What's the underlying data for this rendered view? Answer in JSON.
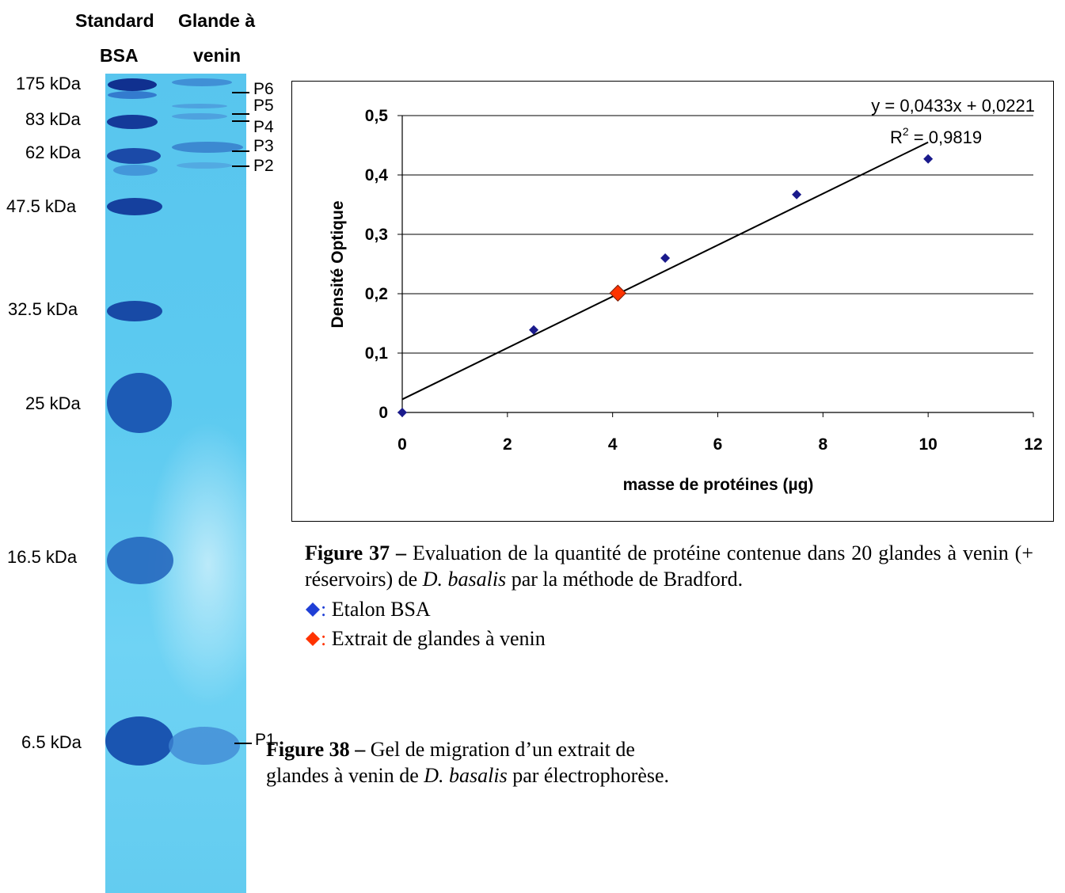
{
  "gel": {
    "header_col1_line1": "Standard",
    "header_col1_line2": "BSA",
    "header_col2_line1": "Glande à",
    "header_col2_line2": "venin",
    "mw_labels": [
      "175 kDa",
      "83 kDa",
      "62 kDa",
      "47.5 kDa",
      "32.5 kDa",
      "25 kDa",
      "16.5 kDa",
      "6.5 kDa"
    ],
    "band_labels": [
      "P6",
      "P5",
      "P4",
      "P3",
      "P2",
      "P1"
    ]
  },
  "chart_data": {
    "type": "scatter",
    "xlabel": "masse de protéines (µg)",
    "ylabel": "Densité Optique",
    "xlim": [
      0,
      12
    ],
    "ylim": [
      0,
      0.5
    ],
    "x_ticks": [
      "0",
      "2",
      "4",
      "6",
      "8",
      "10",
      "12"
    ],
    "y_ticks": [
      "0",
      "0,1",
      "0,2",
      "0,3",
      "0,4",
      "0,5"
    ],
    "grid": "horizontal",
    "series": [
      {
        "x": [
          0,
          2.5,
          5,
          7.5,
          10
        ],
        "y": [
          0,
          0.139,
          0.26,
          0.367,
          0.427
        ],
        "color": "#1a1a8c",
        "marker": "diamond"
      },
      {
        "x": [
          4.1
        ],
        "y": [
          0.201
        ],
        "color": "#ff3300",
        "marker": "diamond"
      }
    ],
    "trendline": {
      "slope": 0.0433,
      "intercept": 0.0221,
      "x_range": [
        0,
        10
      ]
    },
    "equation_text": "y = 0,0433x + 0,0221",
    "r2_prefix": "R",
    "r2_sup": "2",
    "r2_rest": " = 0,9819"
  },
  "fig37": {
    "label": "Figure 37",
    "dash": " – ",
    "text_a": "Evaluation de la quantité de protéine contenue dans 20 glandes à venin (+ réservoirs) de ",
    "species": "D. basalis",
    "text_b": " par la méthode de Bradford.",
    "legend_blue_colon": ":",
    "legend_blue_text": " Etalon BSA",
    "legend_red_colon": ":",
    "legend_red_text": " Extrait de glandes à venin",
    "blue_color": "#1f3fd6",
    "red_color": "#ff3300"
  },
  "fig38": {
    "label": "Figure 38",
    "dash": " – ",
    "text_a": "Gel de migration d’un extrait de",
    "text_b": "glandes à venin de ",
    "species": "D. basalis",
    "text_c": " par électrophorèse."
  }
}
